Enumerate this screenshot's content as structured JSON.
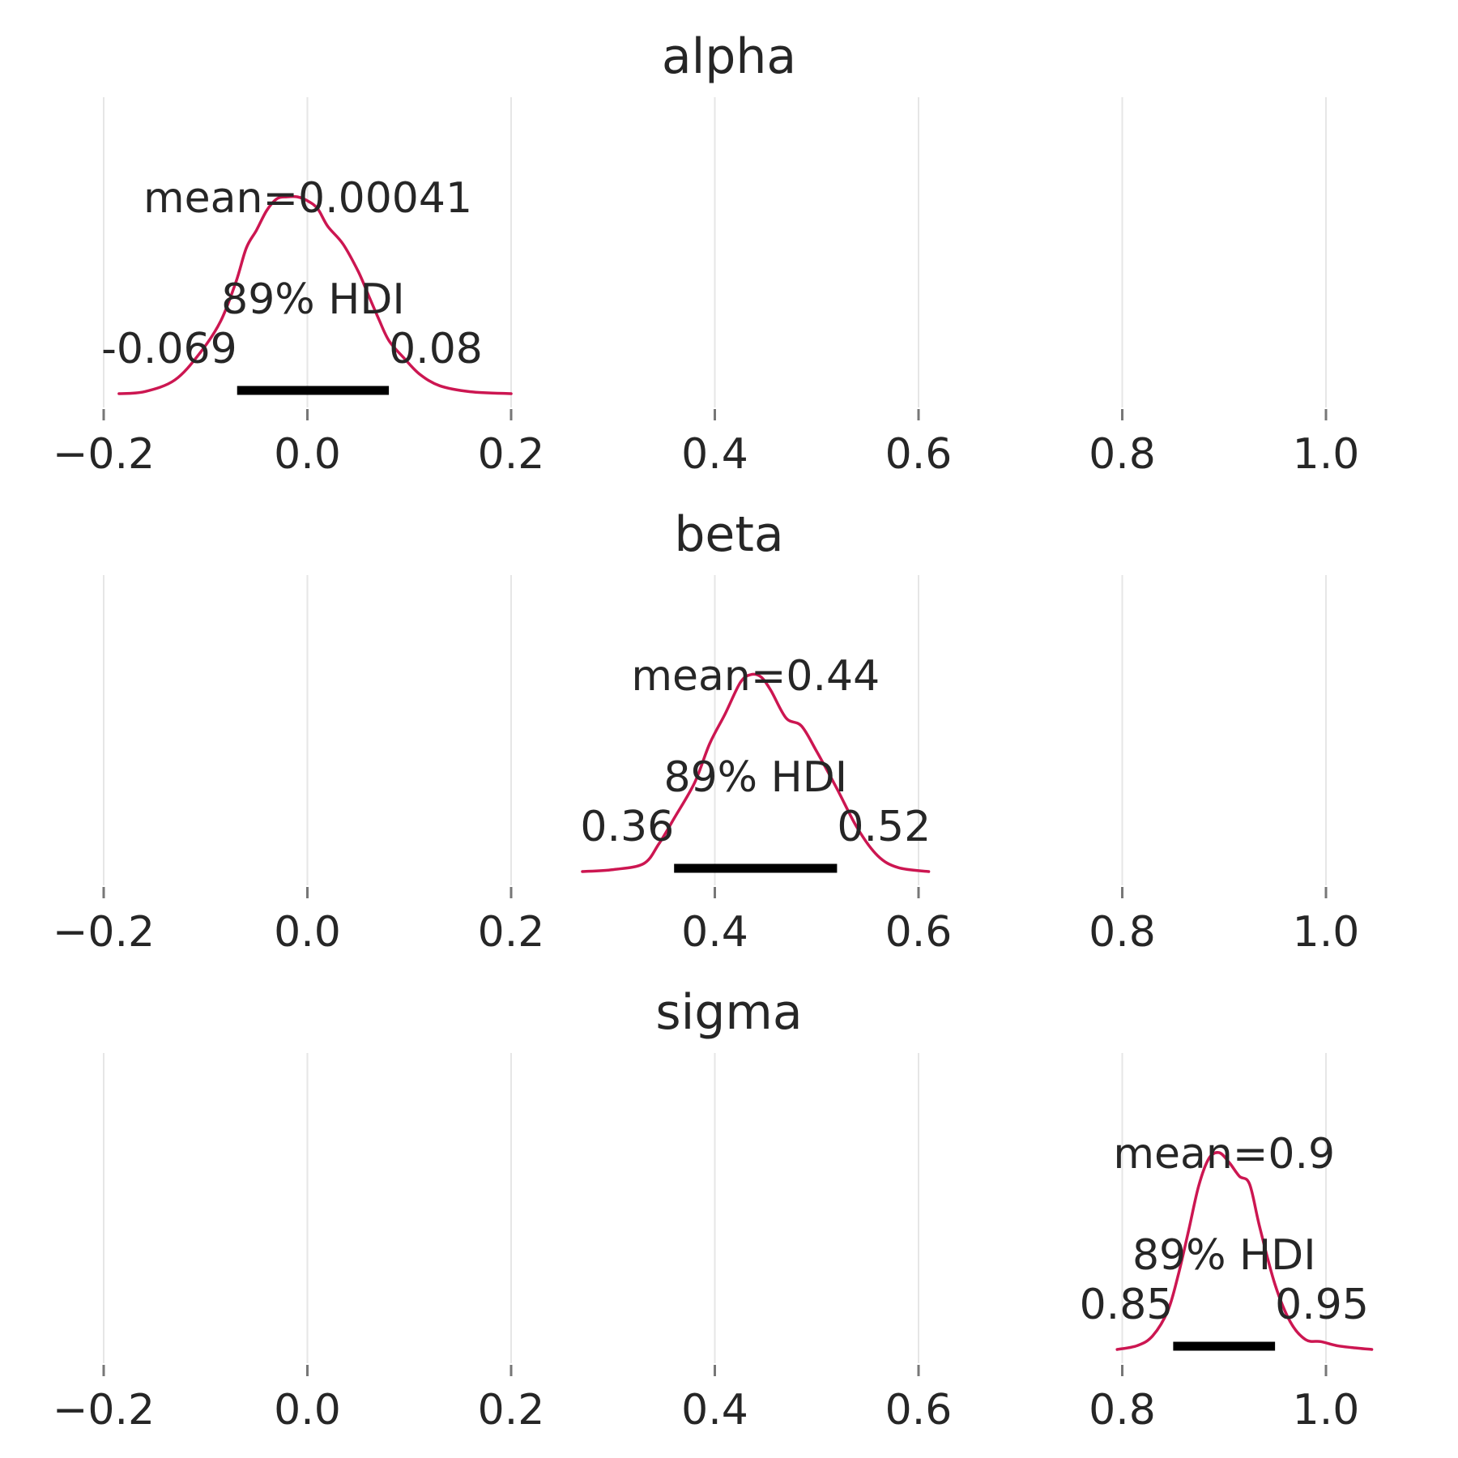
{
  "figure": {
    "domain": "Chart",
    "line_color": "#cc1651",
    "hdi_color": "#000000",
    "grid": true
  },
  "chart_data": [
    {
      "type": "area",
      "title": "alpha",
      "xlabel": "",
      "ylabel": "",
      "xlim": [
        -0.2,
        1.0
      ],
      "xticks": [
        -0.2,
        0.0,
        0.2,
        0.4,
        0.6,
        0.8,
        1.0
      ],
      "xtick_labels": [
        "−0.2",
        "0.0",
        "0.2",
        "0.4",
        "0.6",
        "0.8",
        "1.0"
      ],
      "mean": 0.00041,
      "mean_label": "mean=0.00041",
      "hdi_prob_label": "89% HDI",
      "hdi": [
        -0.069,
        0.08
      ],
      "hdi_labels": [
        "-0.069",
        "0.08"
      ],
      "density": {
        "x": [
          -0.185,
          -0.16,
          -0.13,
          -0.105,
          -0.085,
          -0.07,
          -0.06,
          -0.05,
          -0.04,
          -0.03,
          -0.02,
          -0.01,
          0.0,
          0.01,
          0.02,
          0.035,
          0.05,
          0.06,
          0.07,
          0.08,
          0.095,
          0.11,
          0.13,
          0.16,
          0.2
        ],
        "y": [
          0.0,
          0.01,
          0.07,
          0.21,
          0.37,
          0.57,
          0.74,
          0.83,
          0.93,
          0.99,
          1.0,
          1.0,
          0.98,
          0.94,
          0.85,
          0.76,
          0.62,
          0.5,
          0.38,
          0.27,
          0.18,
          0.1,
          0.04,
          0.01,
          0.0
        ]
      }
    },
    {
      "type": "area",
      "title": "beta",
      "xlabel": "",
      "ylabel": "",
      "xlim": [
        -0.2,
        1.0
      ],
      "xticks": [
        -0.2,
        0.0,
        0.2,
        0.4,
        0.6,
        0.8,
        1.0
      ],
      "xtick_labels": [
        "−0.2",
        "0.0",
        "0.2",
        "0.4",
        "0.6",
        "0.8",
        "1.0"
      ],
      "mean": 0.44,
      "mean_label": "mean=0.44",
      "hdi_prob_label": "89% HDI",
      "hdi": [
        0.36,
        0.52
      ],
      "hdi_labels": [
        "0.36",
        "0.52"
      ],
      "density": {
        "x": [
          0.27,
          0.3,
          0.33,
          0.345,
          0.36,
          0.38,
          0.395,
          0.41,
          0.425,
          0.435,
          0.445,
          0.455,
          0.47,
          0.485,
          0.5,
          0.52,
          0.54,
          0.56,
          0.58,
          0.61
        ],
        "y": [
          0.0,
          0.01,
          0.04,
          0.14,
          0.27,
          0.45,
          0.65,
          0.8,
          0.96,
          1.0,
          0.99,
          0.92,
          0.78,
          0.74,
          0.61,
          0.42,
          0.22,
          0.08,
          0.02,
          0.0
        ]
      }
    },
    {
      "type": "area",
      "title": "sigma",
      "xlabel": "",
      "ylabel": "",
      "xlim": [
        -0.2,
        1.0
      ],
      "xticks": [
        -0.2,
        0.0,
        0.2,
        0.4,
        0.6,
        0.8,
        1.0
      ],
      "xtick_labels": [
        "−0.2",
        "0.0",
        "0.2",
        "0.4",
        "0.6",
        "0.8",
        "1.0"
      ],
      "mean": 0.9,
      "mean_label": "mean=0.9",
      "hdi_prob_label": "89% HDI",
      "hdi": [
        0.85,
        0.95
      ],
      "hdi_labels": [
        "0.85",
        "0.95"
      ],
      "density": {
        "x": [
          0.795,
          0.815,
          0.83,
          0.845,
          0.855,
          0.865,
          0.875,
          0.885,
          0.895,
          0.905,
          0.915,
          0.925,
          0.935,
          0.95,
          0.965,
          0.98,
          0.995,
          1.01,
          1.025,
          1.045
        ],
        "y": [
          0.0,
          0.02,
          0.07,
          0.2,
          0.38,
          0.6,
          0.83,
          0.97,
          1.0,
          0.95,
          0.88,
          0.84,
          0.62,
          0.33,
          0.14,
          0.05,
          0.04,
          0.02,
          0.01,
          0.0
        ]
      }
    }
  ]
}
